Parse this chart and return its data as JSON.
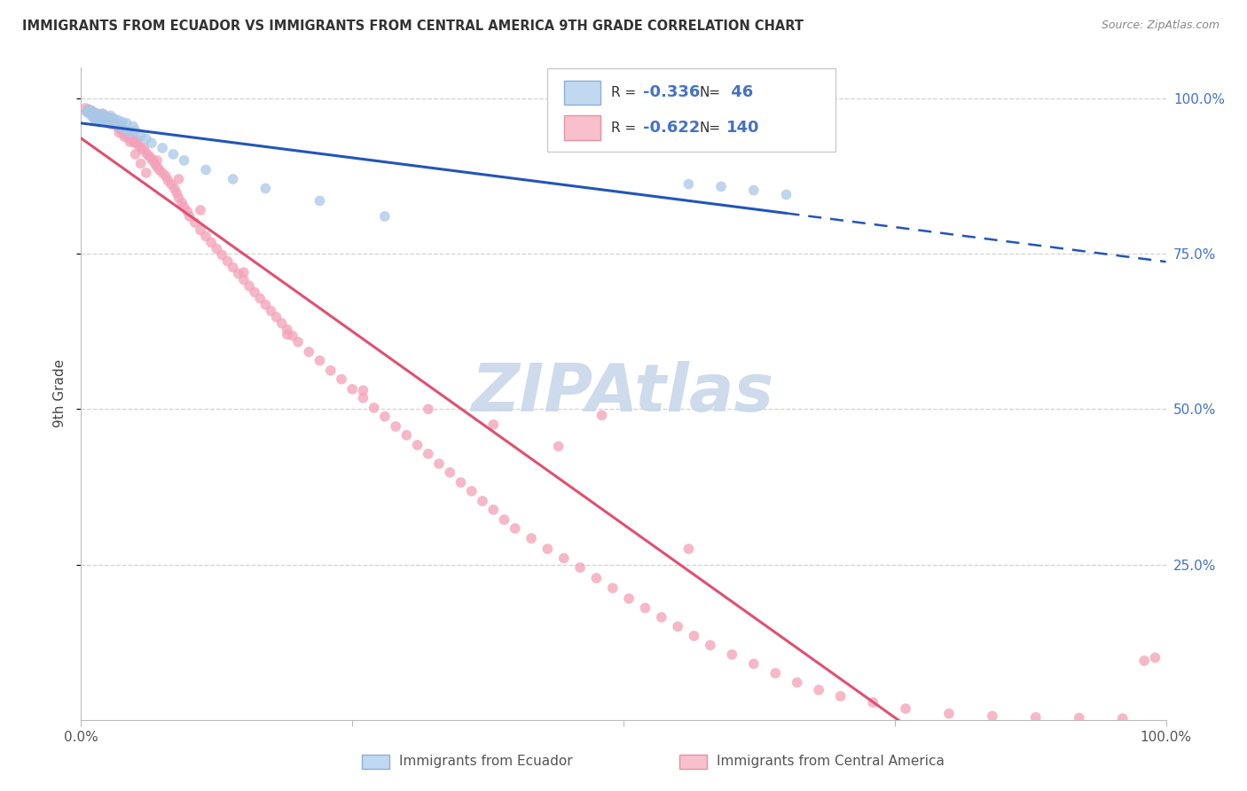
{
  "title": "IMMIGRANTS FROM ECUADOR VS IMMIGRANTS FROM CENTRAL AMERICA 9TH GRADE CORRELATION CHART",
  "source": "Source: ZipAtlas.com",
  "ylabel": "9th Grade",
  "legend_R_ecuador": "-0.336",
  "legend_N_ecuador": " 46",
  "legend_R_ca": "-0.622",
  "legend_N_ca": "140",
  "legend_label_ecuador": "Immigrants from Ecuador",
  "legend_label_ca": "Immigrants from Central America",
  "ecuador_marker_color": "#a8c8e8",
  "ecuador_line_color": "#2255bb",
  "ca_marker_color": "#f4a0b8",
  "ca_line_color": "#e05070",
  "background_color": "#ffffff",
  "grid_color": "#cccccc",
  "ytick_color": "#4472c4",
  "title_color": "#333333",
  "source_color": "#888888",
  "watermark_color": "#c8d8ea",
  "xlim": [
    0.0,
    1.0
  ],
  "ylim": [
    0.0,
    1.05
  ],
  "ecuador_x": [
    0.005,
    0.007,
    0.008,
    0.009,
    0.01,
    0.011,
    0.012,
    0.013,
    0.014,
    0.015,
    0.016,
    0.017,
    0.018,
    0.019,
    0.02,
    0.021,
    0.022,
    0.023,
    0.025,
    0.027,
    0.028,
    0.03,
    0.032,
    0.034,
    0.036,
    0.038,
    0.04,
    0.042,
    0.045,
    0.048,
    0.05,
    0.055,
    0.06,
    0.065,
    0.075,
    0.085,
    0.095,
    0.115,
    0.14,
    0.17,
    0.22,
    0.28,
    0.56,
    0.59,
    0.62,
    0.65
  ],
  "ecuador_y": [
    0.978,
    0.982,
    0.975,
    0.98,
    0.972,
    0.969,
    0.977,
    0.965,
    0.973,
    0.968,
    0.974,
    0.962,
    0.971,
    0.966,
    0.975,
    0.968,
    0.963,
    0.97,
    0.965,
    0.972,
    0.96,
    0.968,
    0.958,
    0.965,
    0.955,
    0.962,
    0.95,
    0.96,
    0.945,
    0.955,
    0.948,
    0.94,
    0.935,
    0.928,
    0.92,
    0.91,
    0.9,
    0.885,
    0.87,
    0.855,
    0.835,
    0.81,
    0.862,
    0.858,
    0.852,
    0.845
  ],
  "ca_x": [
    0.004,
    0.006,
    0.007,
    0.009,
    0.01,
    0.011,
    0.012,
    0.013,
    0.014,
    0.015,
    0.016,
    0.017,
    0.018,
    0.019,
    0.02,
    0.021,
    0.022,
    0.024,
    0.025,
    0.027,
    0.028,
    0.03,
    0.032,
    0.033,
    0.035,
    0.037,
    0.038,
    0.04,
    0.042,
    0.044,
    0.045,
    0.047,
    0.049,
    0.05,
    0.052,
    0.054,
    0.056,
    0.058,
    0.06,
    0.062,
    0.064,
    0.066,
    0.068,
    0.07,
    0.072,
    0.075,
    0.078,
    0.08,
    0.083,
    0.086,
    0.088,
    0.09,
    0.093,
    0.095,
    0.098,
    0.1,
    0.105,
    0.11,
    0.115,
    0.12,
    0.125,
    0.13,
    0.135,
    0.14,
    0.145,
    0.15,
    0.155,
    0.16,
    0.165,
    0.17,
    0.175,
    0.18,
    0.185,
    0.19,
    0.195,
    0.2,
    0.21,
    0.22,
    0.23,
    0.24,
    0.25,
    0.26,
    0.27,
    0.28,
    0.29,
    0.3,
    0.31,
    0.32,
    0.33,
    0.34,
    0.35,
    0.36,
    0.37,
    0.38,
    0.39,
    0.4,
    0.415,
    0.43,
    0.445,
    0.46,
    0.475,
    0.49,
    0.505,
    0.52,
    0.535,
    0.55,
    0.565,
    0.58,
    0.6,
    0.62,
    0.64,
    0.66,
    0.68,
    0.7,
    0.73,
    0.76,
    0.8,
    0.84,
    0.88,
    0.92,
    0.96,
    0.98,
    0.99,
    0.48,
    0.38,
    0.32,
    0.44,
    0.56,
    0.26,
    0.19,
    0.15,
    0.11,
    0.09,
    0.07,
    0.06,
    0.055,
    0.05,
    0.045,
    0.04,
    0.035
  ],
  "ca_y": [
    0.984,
    0.978,
    0.982,
    0.975,
    0.98,
    0.974,
    0.972,
    0.968,
    0.976,
    0.97,
    0.974,
    0.966,
    0.972,
    0.965,
    0.975,
    0.968,
    0.964,
    0.97,
    0.962,
    0.968,
    0.958,
    0.965,
    0.96,
    0.955,
    0.958,
    0.95,
    0.948,
    0.942,
    0.948,
    0.938,
    0.935,
    0.94,
    0.93,
    0.928,
    0.932,
    0.922,
    0.918,
    0.92,
    0.912,
    0.908,
    0.905,
    0.9,
    0.895,
    0.89,
    0.885,
    0.88,
    0.875,
    0.868,
    0.862,
    0.855,
    0.848,
    0.84,
    0.832,
    0.825,
    0.818,
    0.81,
    0.8,
    0.788,
    0.778,
    0.768,
    0.758,
    0.748,
    0.738,
    0.728,
    0.718,
    0.708,
    0.698,
    0.688,
    0.678,
    0.668,
    0.658,
    0.648,
    0.638,
    0.628,
    0.618,
    0.608,
    0.592,
    0.578,
    0.562,
    0.548,
    0.532,
    0.518,
    0.502,
    0.488,
    0.472,
    0.458,
    0.442,
    0.428,
    0.412,
    0.398,
    0.382,
    0.368,
    0.352,
    0.338,
    0.322,
    0.308,
    0.292,
    0.275,
    0.26,
    0.245,
    0.228,
    0.212,
    0.195,
    0.18,
    0.165,
    0.15,
    0.135,
    0.12,
    0.105,
    0.09,
    0.075,
    0.06,
    0.048,
    0.038,
    0.028,
    0.018,
    0.01,
    0.006,
    0.004,
    0.003,
    0.002,
    0.095,
    0.1,
    0.49,
    0.475,
    0.5,
    0.44,
    0.275,
    0.53,
    0.62,
    0.72,
    0.82,
    0.87,
    0.9,
    0.88,
    0.895,
    0.91,
    0.93,
    0.938,
    0.945
  ]
}
